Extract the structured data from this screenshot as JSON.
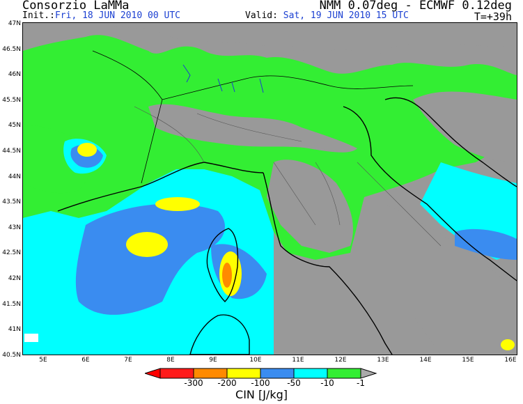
{
  "header": {
    "organization": "Consorzio LaMMa",
    "product": "NMM 0.07deg - ECMWF 0.12deg",
    "init_label": "Init.:",
    "init_value": "Fri, 18 JUN 2010  00 UTC",
    "valid_label": "Valid:",
    "valid_value": "Sat, 19 JUN 2010  15 UTC",
    "lead_time": "T=+39h"
  },
  "lat_labels": [
    "47N",
    "46.5N",
    "46N",
    "45.5N",
    "45N",
    "44.5N",
    "44N",
    "43.5N",
    "43N",
    "42.5N",
    "42N",
    "41.5N",
    "41N",
    "40.5N"
  ],
  "lon_labels": [
    "5E",
    "6E",
    "7E",
    "8E",
    "9E",
    "10E",
    "11E",
    "12E",
    "13E",
    "14E",
    "15E",
    "16E"
  ],
  "colorbar": {
    "title": "CIN [J/kg]",
    "labels": [
      "-300",
      "-200",
      "-100",
      "-50",
      "-10",
      "-1"
    ],
    "colors": [
      "#ff1a1a",
      "#ff8a00",
      "#ffff00",
      "#3a8cf0",
      "#00ffff",
      "#33ee33"
    ]
  },
  "map_colors": {
    "land_gray": "#999999",
    "sea_cyan": "#00ffff",
    "blue": "#3a8cf0",
    "green": "#33ee33",
    "yellow": "#ffff00",
    "orange": "#ff8a00",
    "white": "#ffffff"
  }
}
